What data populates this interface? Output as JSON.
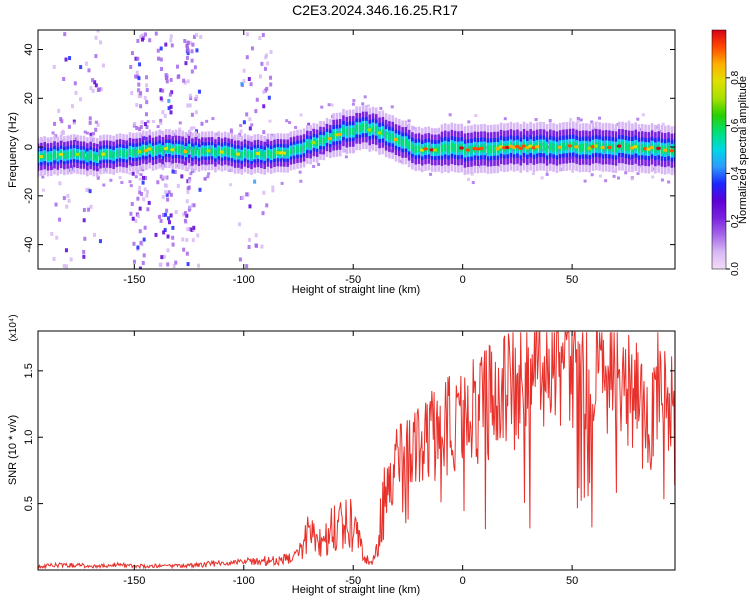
{
  "title": "C2E3.2024.346.16.25.R17",
  "colors": {
    "snr_line": "#e8302a",
    "colormap": [
      "#f4dcf8",
      "#d8b8f4",
      "#a566ea",
      "#7a22e0",
      "#5d00d6",
      "#1a28ff",
      "#2e9bff",
      "#00d8e4",
      "#00e07a",
      "#28d000",
      "#a8e000",
      "#e0e000",
      "#ffb000",
      "#ff4a00",
      "#d80016"
    ]
  },
  "chart_data": [
    {
      "type": "heatmap",
      "xlabel": "Height of straight line (km)",
      "ylabel": "Frequency (Hz)",
      "xlim": [
        -194,
        97
      ],
      "ylim": [
        -50,
        48
      ],
      "xticks": [
        -150,
        -100,
        -50,
        0,
        50
      ],
      "xticklabels": [
        "-150",
        "-100",
        "-50",
        "0",
        "50"
      ],
      "yticks": [
        -40,
        -20,
        0,
        20,
        40
      ],
      "yticklabels": [
        "-40",
        "-20",
        "0",
        "20",
        "40"
      ],
      "colorbar": {
        "label": "Normalized spectral amplitude",
        "range": [
          0,
          1
        ],
        "ticks": [
          0.0,
          0.2,
          0.4,
          0.6,
          0.8
        ],
        "ticklabels": [
          "0.0",
          "0.2",
          "0.4",
          "0.6",
          "0.8"
        ]
      },
      "ridge": {
        "x": [
          -194,
          -180,
          -170,
          -160,
          -150,
          -140,
          -130,
          -120,
          -110,
          -100,
          -90,
          -80,
          -70,
          -60,
          -55,
          -50,
          -45,
          -40,
          -35,
          -30,
          -25,
          -20,
          -15,
          -10,
          -5,
          0,
          10,
          20,
          30,
          40,
          50,
          60,
          70,
          80,
          90,
          97
        ],
        "frequency_hz": [
          -4,
          -3,
          -4,
          -3,
          -2,
          -1,
          -1,
          -2,
          -2,
          -3,
          -3,
          -2,
          1,
          4,
          6,
          7,
          8,
          7,
          5,
          3,
          1,
          -1,
          -1,
          -1,
          0,
          -1,
          -1,
          0,
          0,
          0,
          0,
          0,
          0,
          0,
          -1,
          -1
        ]
      }
    },
    {
      "type": "line",
      "xlabel": "Height of straight line (km)",
      "ylabel": "SNR (10 * v/v)",
      "scale_label": "(x10⁴)",
      "xlim": [
        -194,
        97
      ],
      "ylim": [
        0,
        1.8
      ],
      "xticks": [
        -150,
        -100,
        -50,
        0,
        50
      ],
      "xticklabels": [
        "-150",
        "-100",
        "-50",
        "0",
        "50"
      ],
      "yticks": [
        0.5,
        1.0,
        1.5
      ],
      "yticklabels": [
        "0.5",
        "1.0",
        "1.5"
      ],
      "series": [
        {
          "x": [
            -194,
            -180,
            -170,
            -160,
            -150,
            -140,
            -130,
            -120,
            -110,
            -100,
            -90,
            -80,
            -75,
            -70,
            -65,
            -60,
            -55,
            -50,
            -45,
            -42,
            -40,
            -38,
            -35,
            -32,
            -30,
            -25,
            -20,
            -15,
            -10,
            -5,
            0,
            5,
            10,
            15,
            20,
            25,
            30,
            35,
            40,
            45,
            50,
            55,
            60,
            65,
            70,
            75,
            80,
            85,
            90,
            97
          ],
          "values": [
            0.03,
            0.04,
            0.03,
            0.04,
            0.03,
            0.03,
            0.03,
            0.04,
            0.05,
            0.06,
            0.07,
            0.08,
            0.12,
            0.28,
            0.2,
            0.3,
            0.38,
            0.32,
            0.1,
            0.05,
            0.12,
            0.3,
            0.55,
            0.75,
            0.85,
            0.9,
            0.95,
            1.0,
            1.05,
            1.1,
            1.15,
            1.2,
            1.25,
            1.3,
            1.35,
            1.4,
            1.45,
            1.55,
            1.6,
            1.58,
            1.5,
            1.55,
            1.3,
            1.55,
            1.5,
            1.35,
            1.3,
            1.0,
            1.45,
            1.3
          ]
        }
      ]
    }
  ]
}
